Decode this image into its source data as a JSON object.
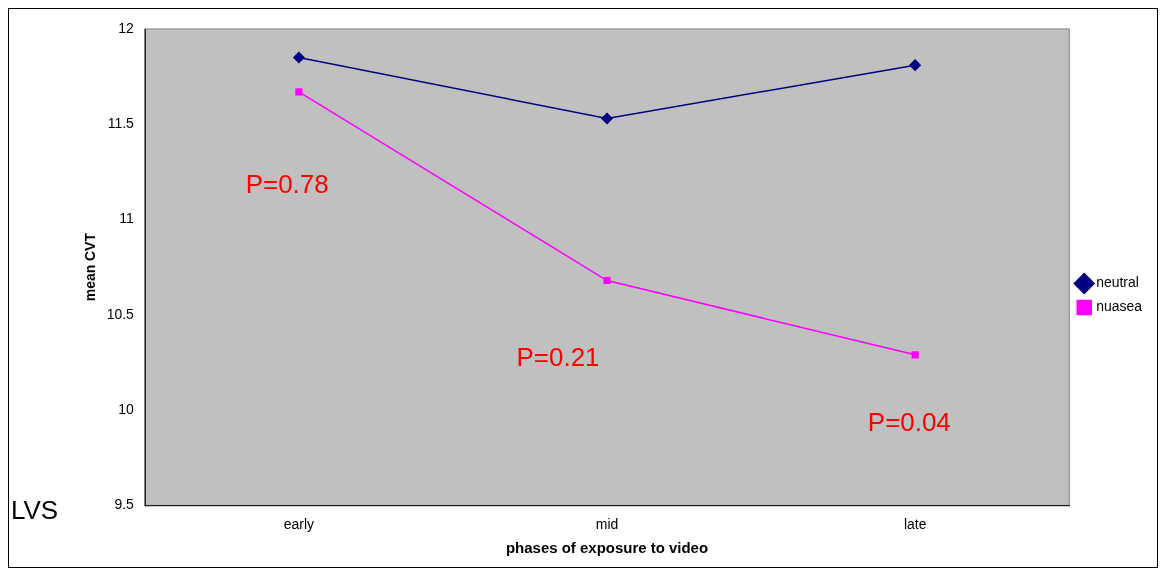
{
  "chart_data": {
    "type": "line",
    "xlabel": "phases of exposure to video",
    "ylabel": "mean CVT",
    "categories": [
      "early",
      "mid",
      "late"
    ],
    "series": [
      {
        "name": "neutral",
        "color": "#000080",
        "values": [
          11.85,
          11.53,
          11.81
        ],
        "marker": "diamond"
      },
      {
        "name": "nuasea",
        "color": "#ff00ff",
        "values": [
          11.67,
          10.68,
          10.29
        ],
        "marker": "square"
      }
    ],
    "ylim": [
      9.5,
      12
    ],
    "yticks": [
      {
        "value": 9.5,
        "label": "9.5"
      },
      {
        "value": 10,
        "label": "10"
      },
      {
        "value": 10.5,
        "label": "10.5"
      },
      {
        "value": 11,
        "label": "11"
      },
      {
        "value": 11.5,
        "label": "11.5"
      },
      {
        "value": 12,
        "label": "12"
      }
    ],
    "legend": "right",
    "annotations": [
      "P=0.78",
      "P=0.21",
      "P=0.04",
      "LVS"
    ]
  }
}
